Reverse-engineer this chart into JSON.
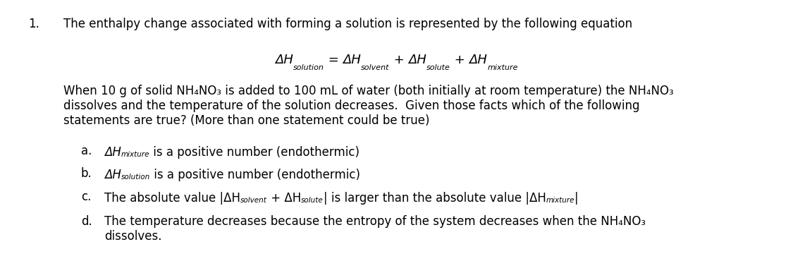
{
  "bg_color": "#ffffff",
  "text_color": "#000000",
  "fig_width": 11.25,
  "fig_height": 3.87,
  "dpi": 100,
  "font_size_main": 12,
  "font_size_sub": 7.5,
  "font_size_eq_main": 13,
  "font_size_eq_sub": 8,
  "body_line1": "When 10 g of solid NH₄NO₃ is added to 100 mL of water (both initially at room temperature) the NH₄NO₃",
  "body_line2": "dissolves and the temperature of the solution decreases.  Given those facts which of the following",
  "body_line3": "statements are true? (More than one statement could be true)",
  "item_d_line1": "The temperature decreases because the entropy of the system decreases when the NH₄NO₃",
  "item_d_line2": "dissolves."
}
